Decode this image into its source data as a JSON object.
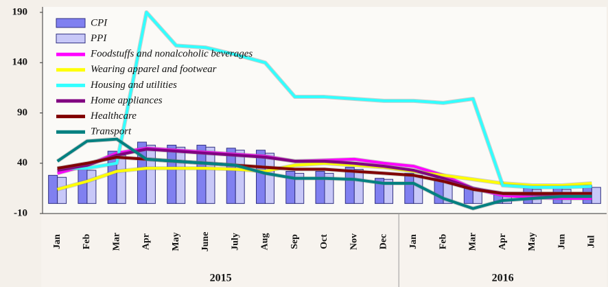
{
  "chart_data": {
    "type": "bar_line",
    "categories": [
      "Jan",
      "Feb",
      "Mar",
      "Apr",
      "May",
      "June",
      "July",
      "Aug",
      "Sep",
      "Oct",
      "Nov",
      "Dec",
      "Jan",
      "Feb",
      "Mar",
      "Apr",
      "May",
      "Jun",
      "Jul"
    ],
    "x_groups": [
      {
        "label": "2015",
        "count": 12
      },
      {
        "label": "2016",
        "count": 7
      }
    ],
    "ylim": [
      -10,
      190
    ],
    "yticks": [
      -10,
      40,
      90,
      140,
      190
    ],
    "bar_series": [
      {
        "name": "CPI",
        "color": "#8080f0",
        "values": [
          28,
          35,
          52,
          61,
          58,
          58,
          55,
          53,
          32,
          32,
          36,
          25,
          30,
          25,
          15,
          11,
          16,
          16,
          18
        ]
      },
      {
        "name": "PPI",
        "color": "#c8c8f8",
        "values": [
          26,
          33,
          48,
          58,
          56,
          56,
          53,
          50,
          30,
          30,
          34,
          24,
          28,
          22,
          13,
          9,
          14,
          14,
          16
        ]
      }
    ],
    "series": [
      {
        "name": "Foodstuffs and nonalcoholic beverages",
        "color": "#ff00ff",
        "values": [
          30,
          38,
          50,
          55,
          53,
          51,
          49,
          47,
          42,
          43,
          44,
          40,
          37,
          28,
          15,
          8,
          6,
          5,
          5
        ]
      },
      {
        "name": "Wearing apparel and footwear",
        "color": "#ffff00",
        "values": [
          14,
          22,
          32,
          35,
          35,
          35,
          34,
          32,
          38,
          40,
          38,
          36,
          32,
          28,
          24,
          20,
          18,
          18,
          20
        ]
      },
      {
        "name": "Housing and utilities",
        "color": "#33ffff",
        "values": [
          35,
          35,
          40,
          190,
          157,
          155,
          148,
          140,
          106,
          106,
          104,
          102,
          102,
          100,
          104,
          18,
          16,
          16,
          17
        ]
      },
      {
        "name": "Home appliances",
        "color": "#800080",
        "values": [
          33,
          38,
          48,
          54,
          52,
          50,
          48,
          46,
          42,
          42,
          40,
          37,
          33,
          25,
          15,
          10,
          9,
          8,
          8
        ]
      },
      {
        "name": "Healthcare",
        "color": "#800000",
        "values": [
          35,
          40,
          46,
          44,
          42,
          40,
          38,
          36,
          34,
          34,
          32,
          30,
          28,
          22,
          14,
          10,
          10,
          10,
          10
        ]
      },
      {
        "name": "Transport",
        "color": "#008080",
        "values": [
          42,
          62,
          64,
          44,
          42,
          40,
          38,
          30,
          25,
          25,
          24,
          20,
          20,
          5,
          -5,
          3,
          5,
          7,
          7
        ]
      }
    ]
  }
}
